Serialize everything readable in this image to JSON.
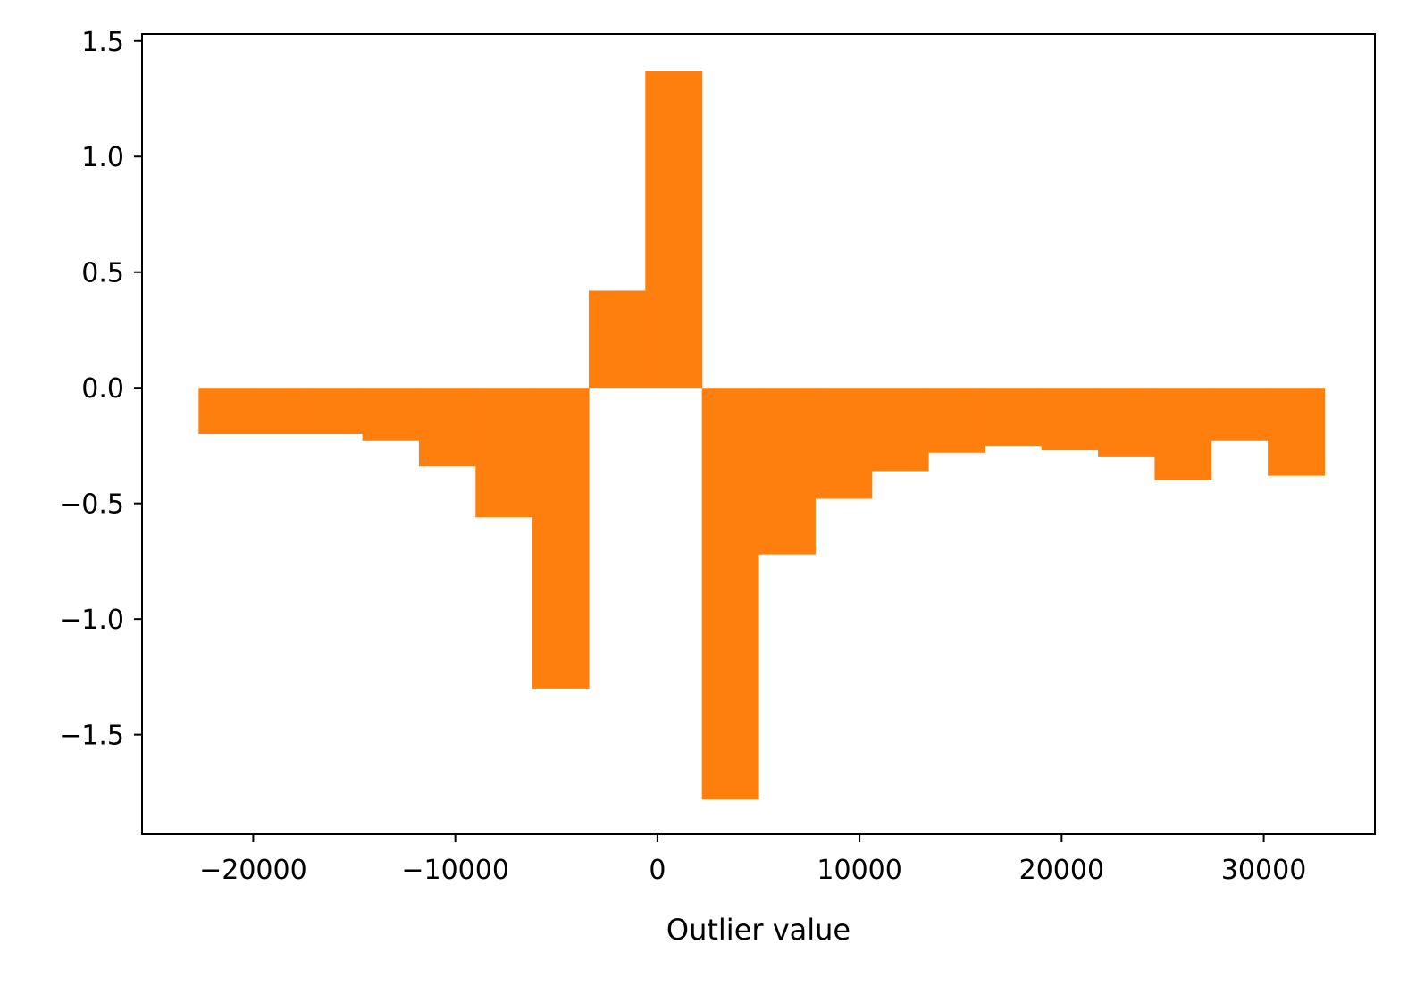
{
  "chart_data": {
    "type": "bar",
    "title": "",
    "xlabel": "Outlier value",
    "ylabel": "",
    "xlim": [
      -25500,
      35500
    ],
    "ylim": [
      -1.93,
      1.53
    ],
    "grid": false,
    "legend": "none",
    "bar_color": "#ff7f0e",
    "x_ticks": [
      -20000,
      -10000,
      0,
      10000,
      20000,
      30000
    ],
    "x_tick_labels": [
      "−20000",
      "−10000",
      "0",
      "10000",
      "20000",
      "30000"
    ],
    "y_ticks": [
      1.5,
      1.0,
      0.5,
      0.0,
      -0.5,
      -1.0,
      -1.5
    ],
    "y_tick_labels": [
      "1.5",
      "1.0",
      "0.5",
      "0.0",
      "−0.5",
      "−1.0",
      "−1.5"
    ],
    "bins": [
      {
        "x0": -22700,
        "x1": -20000,
        "value": -0.2
      },
      {
        "x0": -20000,
        "x1": -17300,
        "value": -0.2
      },
      {
        "x0": -17300,
        "x1": -14600,
        "value": -0.2
      },
      {
        "x0": -14600,
        "x1": -11800,
        "value": -0.23
      },
      {
        "x0": -11800,
        "x1": -9000,
        "value": -0.34
      },
      {
        "x0": -9000,
        "x1": -6200,
        "value": -0.56
      },
      {
        "x0": -6200,
        "x1": -3400,
        "value": -1.3
      },
      {
        "x0": -3400,
        "x1": -600,
        "value": 0.42
      },
      {
        "x0": -600,
        "x1": 2200,
        "value": 1.37
      },
      {
        "x0": 2200,
        "x1": 5000,
        "value": -1.78
      },
      {
        "x0": 5000,
        "x1": 7800,
        "value": -0.72
      },
      {
        "x0": 7800,
        "x1": 10600,
        "value": -0.48
      },
      {
        "x0": 10600,
        "x1": 13400,
        "value": -0.36
      },
      {
        "x0": 13400,
        "x1": 16200,
        "value": -0.28
      },
      {
        "x0": 16200,
        "x1": 19000,
        "value": -0.25
      },
      {
        "x0": 19000,
        "x1": 21800,
        "value": -0.27
      },
      {
        "x0": 21800,
        "x1": 24600,
        "value": -0.3
      },
      {
        "x0": 24600,
        "x1": 27400,
        "value": -0.4
      },
      {
        "x0": 27400,
        "x1": 30200,
        "value": -0.23
      },
      {
        "x0": 30200,
        "x1": 33000,
        "value": -0.38
      }
    ]
  }
}
